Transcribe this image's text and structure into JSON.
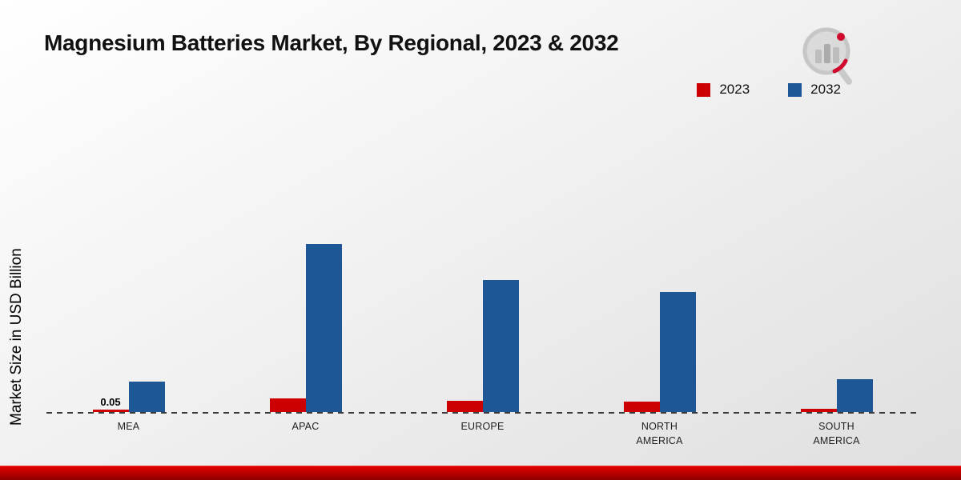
{
  "page": {
    "title": "Magnesium Batteries Market, By Regional, 2023 & 2032"
  },
  "colors": {
    "accent_red": "#cc0000",
    "accent_blue": "#1d5796",
    "footer_red": "#b30000"
  },
  "chart_data": {
    "type": "bar",
    "title": "Magnesium Batteries Market, By Regional, 2023 & 2032",
    "ylabel": "Market Size in USD Billion",
    "xlabel": "",
    "categories": [
      "MEA",
      "APAC",
      "EUROPE",
      "NORTH AMERICA",
      "SOUTH AMERICA"
    ],
    "series": [
      {
        "name": "2023",
        "color": "#cc0000",
        "values": [
          0.05,
          0.28,
          0.23,
          0.22,
          0.07
        ],
        "labels": [
          "0.05",
          "",
          "",
          "",
          ""
        ]
      },
      {
        "name": "2032",
        "color": "#1d5796",
        "values": [
          0.63,
          3.5,
          2.75,
          2.5,
          0.68
        ],
        "labels": [
          "",
          "",
          "",
          "",
          ""
        ]
      }
    ],
    "ylim": [
      0,
      4
    ],
    "grid": false,
    "legend_position": "top-right",
    "baseline_style": "dashed"
  }
}
